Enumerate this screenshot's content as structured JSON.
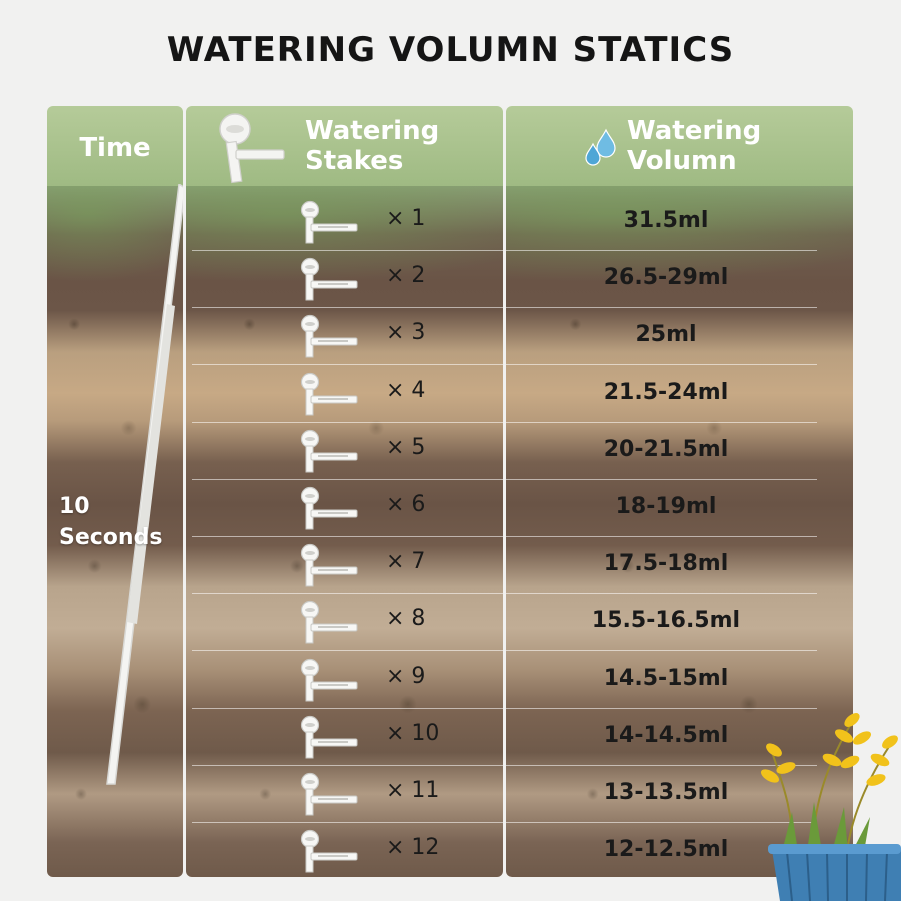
{
  "title": "WATERING VOLUMN STATICS",
  "headers": {
    "time": "Time",
    "stakes_line1": "Watering",
    "stakes_line2": "Stakes",
    "volume_line1": "Watering",
    "volume_line2": "Volumn"
  },
  "time": {
    "value": "10",
    "unit": "Seconds"
  },
  "rows": [
    {
      "count": "× 1",
      "volume": "31.5ml"
    },
    {
      "count": "× 2",
      "volume": "26.5-29ml"
    },
    {
      "count": "× 3",
      "volume": "25ml"
    },
    {
      "count": "× 4",
      "volume": "21.5-24ml"
    },
    {
      "count": "× 5",
      "volume": "20-21.5ml"
    },
    {
      "count": "× 6",
      "volume": "18-19ml"
    },
    {
      "count": "× 7",
      "volume": "17.5-18ml"
    },
    {
      "count": "× 8",
      "volume": "15.5-16.5ml"
    },
    {
      "count": "× 9",
      "volume": "14.5-15ml"
    },
    {
      "count": "× 10",
      "volume": "14-14.5ml"
    },
    {
      "count": "× 11",
      "volume": "13-13.5ml"
    },
    {
      "count": "× 12",
      "volume": "12-12.5ml"
    }
  ],
  "icons": {
    "header_stake": "watering-stake-icon",
    "drops": "water-drops-icon",
    "row_stake": "watering-stake-icon",
    "decoration": "potted-plant-icon"
  },
  "colors": {
    "header_green": "#a8c08b",
    "soil_dark": "#6a5446",
    "soil_light": "#c7a985",
    "drop_blue": "#5aaed8",
    "pot_blue": "#3f7fb3",
    "leaf_yellow": "#f1c21b"
  }
}
